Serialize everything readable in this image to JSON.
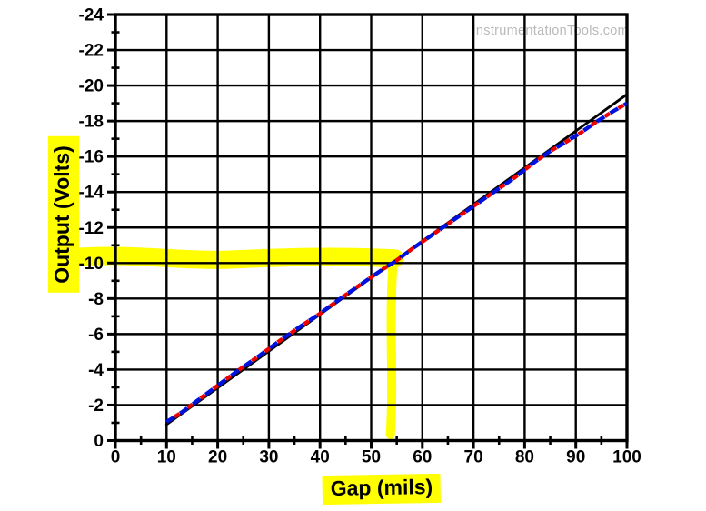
{
  "watermark": "InstrumentationTools.com",
  "chart_data": {
    "type": "line",
    "title": "",
    "xlabel": "Gap (mils)",
    "ylabel": "Output (Volts)",
    "xlim": [
      0,
      100
    ],
    "ylim": [
      0,
      -24
    ],
    "x_ticks": [
      0,
      10,
      20,
      30,
      40,
      50,
      60,
      70,
      80,
      90,
      100
    ],
    "y_ticks": [
      0,
      -2,
      -4,
      -6,
      -8,
      -10,
      -12,
      -14,
      -16,
      -18,
      -20,
      -22,
      -24
    ],
    "x_minor_step": 5,
    "y_minor_step": 1,
    "grid": "major",
    "legend": "none",
    "colors": {
      "grid": "#000000",
      "axis": "#000000",
      "tick_label": "#000000",
      "highlight": "#ffff00",
      "ideal_line": "#000000",
      "measured_blue": "#0011dd",
      "measured_red": "#ee0000",
      "watermark": "#b9b9b9"
    },
    "series": [
      {
        "name": "best-fit-line",
        "color": "#000000",
        "style": "solid",
        "points": [
          [
            10,
            -0.9
          ],
          [
            100,
            -19.5
          ]
        ]
      },
      {
        "name": "probe-response",
        "style": "dashed-two-color",
        "colors": [
          "#0011dd",
          "#ee0000"
        ],
        "points": [
          [
            10,
            -1.05
          ],
          [
            13,
            -1.6
          ],
          [
            16,
            -2.25
          ],
          [
            20,
            -3.1
          ],
          [
            24,
            -3.95
          ],
          [
            28,
            -4.75
          ],
          [
            32,
            -5.6
          ],
          [
            36,
            -6.4
          ],
          [
            40,
            -7.15
          ],
          [
            44,
            -8.0
          ],
          [
            48,
            -8.8
          ],
          [
            52,
            -9.6
          ],
          [
            55,
            -10.15
          ],
          [
            58,
            -10.8
          ],
          [
            62,
            -11.6
          ],
          [
            66,
            -12.4
          ],
          [
            70,
            -13.2
          ],
          [
            74,
            -14.0
          ],
          [
            78,
            -14.8
          ],
          [
            82,
            -15.7
          ],
          [
            85,
            -16.3
          ],
          [
            88,
            -16.8
          ],
          [
            91,
            -17.35
          ],
          [
            94,
            -17.95
          ],
          [
            97,
            -18.5
          ],
          [
            100,
            -19.0
          ]
        ]
      }
    ],
    "annotation": {
      "highlight_color": "#ffff00",
      "crosshair": {
        "output_volts": -10,
        "gap_mils": 55
      }
    }
  }
}
